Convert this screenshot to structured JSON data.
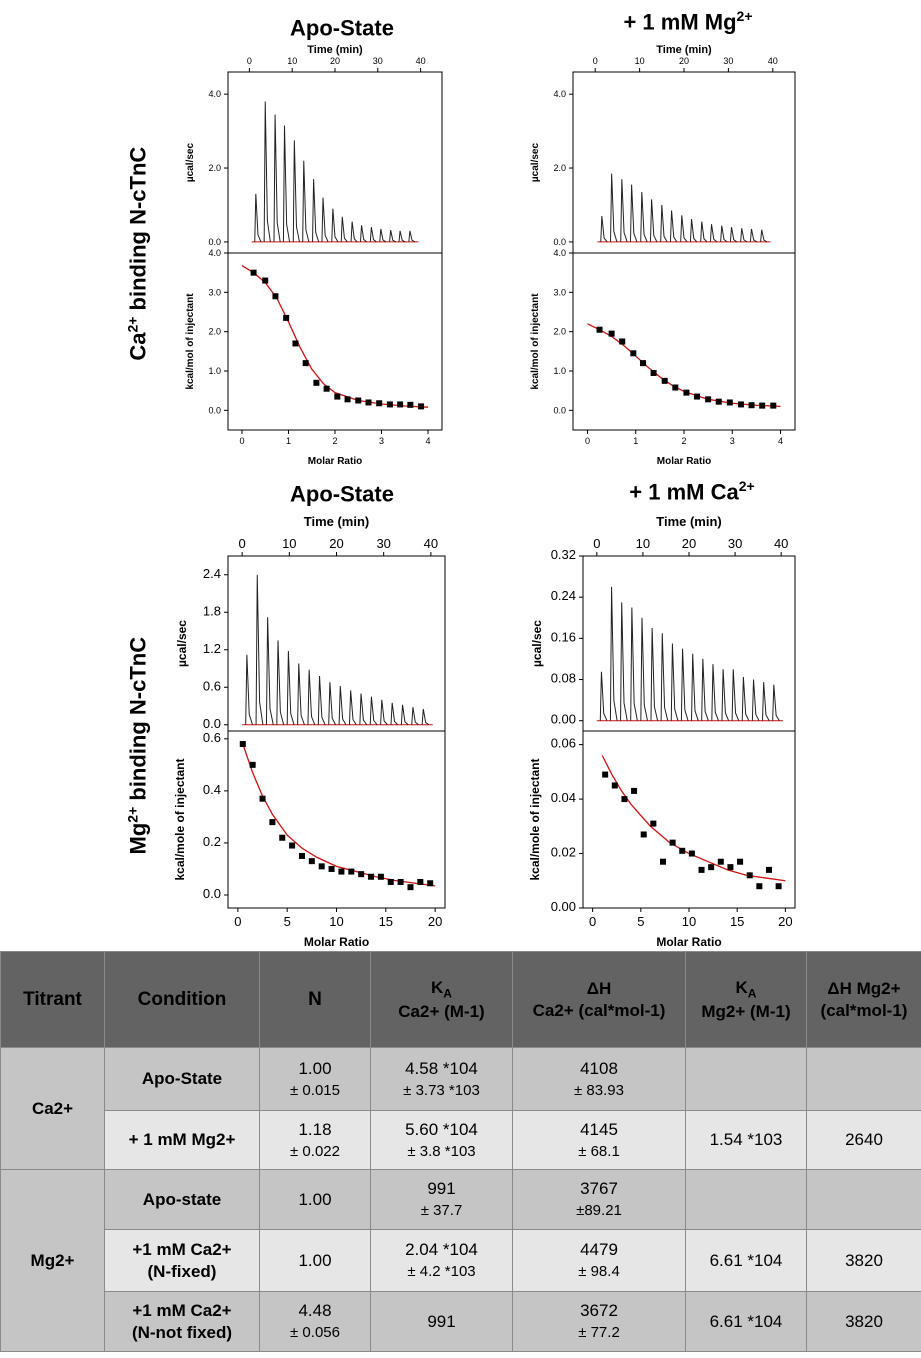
{
  "row_labels": {
    "top_main": "Ca",
    "top_sup": "2+",
    "top_rest": " binding N-cTnC",
    "bottom_main": "Mg",
    "bottom_sup": "2+",
    "bottom_rest": " binding N-cTnC"
  },
  "panel_titles": {
    "p1": {
      "main": "Apo-State",
      "sup": ""
    },
    "p2": {
      "main": "+ 1 mM Mg",
      "sup": "2+"
    },
    "p3": {
      "main": "Apo-State",
      "sup": ""
    },
    "p4": {
      "main": "+ 1 mM Ca",
      "sup": "2+"
    }
  },
  "chart_data": [
    {
      "type": "line",
      "id": "p1",
      "title": "Apo-State",
      "raw": {
        "xlabel": "Time (min)",
        "ylabel": "µcal/sec",
        "xlim": [
          -5,
          45
        ],
        "ylim": [
          -0.3,
          4.6
        ],
        "xticks": [
          0,
          10,
          20,
          30,
          40
        ],
        "yticks": [
          0.0,
          2.0,
          4.0
        ],
        "ytick_labels": [
          "0.0",
          "2.0",
          "4.0"
        ],
        "injection_times": [
          1.5,
          3.7,
          6,
          8.2,
          10.5,
          12.7,
          15,
          17.2,
          19.5,
          21.7,
          24,
          26.2,
          28.5,
          30.7,
          33,
          35.2,
          37.5
        ],
        "peak_heights": [
          1.3,
          3.8,
          3.45,
          3.15,
          2.75,
          2.2,
          1.7,
          1.2,
          0.9,
          0.68,
          0.55,
          0.45,
          0.4,
          0.35,
          0.32,
          0.3,
          0.3
        ],
        "baseline": 0.0
      },
      "fit": {
        "xlabel": "Molar Ratio",
        "ylabel": "kcal/mol of injectant",
        "xlim": [
          -0.3,
          4.3
        ],
        "ylim": [
          -0.5,
          4.0
        ],
        "xticks": [
          0,
          1,
          2,
          3,
          4
        ],
        "yticks": [
          0.0,
          1.0,
          2.0,
          3.0,
          4.0
        ],
        "ytick_labels": [
          "0.0",
          "1.0",
          "2.0",
          "3.0",
          "4.0"
        ],
        "points_x": [
          0.25,
          0.5,
          0.72,
          0.95,
          1.15,
          1.37,
          1.6,
          1.82,
          2.05,
          2.27,
          2.5,
          2.72,
          2.95,
          3.18,
          3.4,
          3.62,
          3.85
        ],
        "points_y": [
          3.5,
          3.3,
          2.9,
          2.35,
          1.7,
          1.2,
          0.7,
          0.55,
          0.35,
          0.28,
          0.25,
          0.2,
          0.18,
          0.15,
          0.15,
          0.14,
          0.1
        ],
        "fit_x": [
          0,
          0.25,
          0.5,
          0.75,
          1.0,
          1.25,
          1.5,
          1.75,
          2.0,
          2.5,
          3.0,
          3.5,
          4.0
        ],
        "fit_y": [
          3.68,
          3.5,
          3.25,
          2.85,
          2.25,
          1.6,
          1.05,
          0.68,
          0.45,
          0.25,
          0.16,
          0.11,
          0.08
        ]
      }
    },
    {
      "type": "line",
      "id": "p2",
      "title": "+ 1 mM Mg2+",
      "raw": {
        "xlabel": "Time (min)",
        "ylabel": "µcal/sec",
        "xlim": [
          -5,
          45
        ],
        "ylim": [
          -0.3,
          4.6
        ],
        "xticks": [
          0,
          10,
          20,
          30,
          40
        ],
        "yticks": [
          0.0,
          2.0,
          4.0
        ],
        "ytick_labels": [
          "0.0",
          "2.0",
          "4.0"
        ],
        "injection_times": [
          1.5,
          3.7,
          6,
          8.2,
          10.5,
          12.7,
          15,
          17.2,
          19.5,
          21.7,
          24,
          26.2,
          28.5,
          30.7,
          33,
          35.2,
          37.5
        ],
        "peak_heights": [
          0.7,
          1.85,
          1.7,
          1.55,
          1.35,
          1.15,
          1.0,
          0.85,
          0.72,
          0.62,
          0.55,
          0.48,
          0.44,
          0.4,
          0.37,
          0.35,
          0.33
        ],
        "baseline": 0.0
      },
      "fit": {
        "xlabel": "Molar Ratio",
        "ylabel": "kcal/mol of injectant",
        "xlim": [
          -0.3,
          4.3
        ],
        "ylim": [
          -0.5,
          4.0
        ],
        "xticks": [
          0,
          1,
          2,
          3,
          4
        ],
        "yticks": [
          0.0,
          1.0,
          2.0,
          3.0,
          4.0
        ],
        "ytick_labels": [
          "0.0",
          "1.0",
          "2.0",
          "3.0",
          "4.0"
        ],
        "points_x": [
          0.25,
          0.5,
          0.72,
          0.95,
          1.15,
          1.37,
          1.6,
          1.82,
          2.05,
          2.27,
          2.5,
          2.72,
          2.95,
          3.18,
          3.4,
          3.62,
          3.85
        ],
        "points_y": [
          2.05,
          1.95,
          1.75,
          1.45,
          1.2,
          0.95,
          0.75,
          0.58,
          0.45,
          0.35,
          0.28,
          0.22,
          0.2,
          0.15,
          0.13,
          0.12,
          0.12
        ],
        "fit_x": [
          0,
          0.25,
          0.5,
          0.75,
          1.0,
          1.25,
          1.5,
          1.75,
          2.0,
          2.5,
          3.0,
          3.5,
          4.0
        ],
        "fit_y": [
          2.2,
          2.05,
          1.88,
          1.65,
          1.38,
          1.1,
          0.85,
          0.64,
          0.48,
          0.28,
          0.18,
          0.13,
          0.1
        ]
      }
    },
    {
      "type": "line",
      "id": "p3",
      "title": "Apo-State",
      "raw": {
        "xlabel": "Time (min)",
        "ylabel": "µcal/sec",
        "xlim": [
          -3,
          43
        ],
        "ylim": [
          -0.1,
          2.7
        ],
        "xticks": [
          0,
          10,
          20,
          30,
          40
        ],
        "yticks": [
          0.0,
          0.6,
          1.2,
          1.8,
          2.4
        ],
        "ytick_labels": [
          "0.0",
          "0.6",
          "1.2",
          "1.8",
          "2.4"
        ],
        "injection_times": [
          1,
          3.2,
          5.4,
          7.6,
          9.8,
          12,
          14.2,
          16.4,
          18.6,
          20.8,
          23,
          25.2,
          27.4,
          29.6,
          31.8,
          34,
          36.2,
          38.4
        ],
        "peak_heights": [
          1.12,
          2.4,
          1.72,
          1.35,
          1.18,
          0.98,
          0.88,
          0.78,
          0.68,
          0.62,
          0.55,
          0.5,
          0.45,
          0.4,
          0.35,
          0.32,
          0.28,
          0.25
        ],
        "baseline": 0.0
      },
      "fit": {
        "xlabel": "Molar Ratio",
        "ylabel": "kcal/mole of injectant",
        "xlim": [
          -1,
          21
        ],
        "ylim": [
          -0.05,
          0.63
        ],
        "xticks": [
          0,
          5,
          10,
          15,
          20
        ],
        "yticks": [
          0.0,
          0.2,
          0.4,
          0.6
        ],
        "ytick_labels": [
          "0.0",
          "0.2",
          "0.4",
          "0.6"
        ],
        "points_x": [
          0.5,
          1.5,
          2.5,
          3.5,
          4.5,
          5.5,
          6.5,
          7.5,
          8.5,
          9.5,
          10.5,
          11.5,
          12.5,
          13.5,
          14.5,
          15.5,
          16.5,
          17.5,
          18.5,
          19.5
        ],
        "points_y": [
          0.58,
          0.5,
          0.37,
          0.28,
          0.22,
          0.19,
          0.15,
          0.13,
          0.11,
          0.1,
          0.09,
          0.09,
          0.08,
          0.07,
          0.07,
          0.05,
          0.05,
          0.03,
          0.05,
          0.045
        ],
        "fit_x": [
          0.5,
          1.5,
          2.5,
          3.5,
          5,
          6.5,
          8,
          10,
          12,
          14,
          16,
          18,
          20
        ],
        "fit_y": [
          0.58,
          0.47,
          0.38,
          0.31,
          0.23,
          0.18,
          0.145,
          0.11,
          0.09,
          0.07,
          0.055,
          0.045,
          0.035
        ]
      }
    },
    {
      "type": "line",
      "id": "p4",
      "title": "+ 1 mM Ca2+",
      "raw": {
        "xlabel": "Time (min)",
        "ylabel": "µcal/sec",
        "xlim": [
          -3,
          43
        ],
        "ylim": [
          -0.02,
          0.32
        ],
        "xticks": [
          0,
          10,
          20,
          30,
          40
        ],
        "yticks": [
          0.0,
          0.08,
          0.16,
          0.24,
          0.32
        ],
        "ytick_labels": [
          "0.00",
          "0.08",
          "0.16",
          "0.24",
          "0.32"
        ],
        "injection_times": [
          1,
          3.2,
          5.4,
          7.6,
          9.8,
          12,
          14.2,
          16.4,
          18.6,
          20.8,
          23,
          25.2,
          27.4,
          29.6,
          31.8,
          34,
          36.2,
          38.4
        ],
        "peak_heights": [
          0.095,
          0.26,
          0.23,
          0.22,
          0.2,
          0.18,
          0.17,
          0.15,
          0.14,
          0.13,
          0.12,
          0.11,
          0.1,
          0.1,
          0.085,
          0.08,
          0.075,
          0.07
        ],
        "baseline": 0.0
      },
      "fit": {
        "xlabel": "Molar Ratio",
        "ylabel": "kcal/mole of injectant",
        "xlim": [
          -1,
          21
        ],
        "ylim": [
          0.0,
          0.065
        ],
        "xticks": [
          0,
          5,
          10,
          15,
          20
        ],
        "yticks": [
          0.0,
          0.02,
          0.04,
          0.06
        ],
        "ytick_labels": [
          "0.00",
          "0.02",
          "0.04",
          "0.06"
        ],
        "points_x": [
          1.3,
          2.3,
          3.3,
          4.3,
          5.3,
          6.3,
          7.3,
          8.3,
          9.3,
          10.3,
          11.3,
          12.3,
          13.3,
          14.3,
          15.3,
          16.3,
          17.3,
          18.3,
          19.3
        ],
        "points_y": [
          0.049,
          0.045,
          0.04,
          0.043,
          0.027,
          0.031,
          0.017,
          0.024,
          0.021,
          0.02,
          0.014,
          0.015,
          0.017,
          0.015,
          0.017,
          0.012,
          0.008,
          0.014,
          0.008
        ],
        "fit_x": [
          1,
          2,
          3,
          4,
          5,
          6,
          8,
          10,
          12,
          14,
          16,
          18,
          20
        ],
        "fit_y": [
          0.056,
          0.049,
          0.043,
          0.038,
          0.034,
          0.03,
          0.024,
          0.02,
          0.017,
          0.014,
          0.012,
          0.011,
          0.01
        ]
      }
    }
  ],
  "table": {
    "headers": {
      "titrant": "Titrant",
      "condition": "Condition",
      "n": "N",
      "ka_ca_main": "K",
      "ka_ca_sub": "A",
      "ka_ca_line2": "Ca2+ (M-1)",
      "dh_ca_main": "ΔH",
      "dh_ca_line2": "Ca2+ (cal*mol-1)",
      "ka_mg_main": "K",
      "ka_mg_sub": "A",
      "ka_mg_line2": "Mg2+ (M-1)",
      "dh_mg_main": "ΔH Mg2+",
      "dh_mg_line2": "(cal*mol-1)"
    },
    "groups": [
      {
        "titrant": "Ca2+"
      },
      {
        "titrant": "Mg2+"
      }
    ],
    "rows": [
      {
        "condition": "Apo-State",
        "condition2": "",
        "n": "1.00",
        "n_err": "± 0.015",
        "ka_ca": "4.58 *104",
        "ka_ca_err": "± 3.73 *103",
        "dh_ca": "4108",
        "dh_ca_err": "± 83.93",
        "ka_mg": "",
        "dh_mg": ""
      },
      {
        "condition": "+ 1 mM Mg2+",
        "condition2": "",
        "n": "1.18",
        "n_err": "± 0.022",
        "ka_ca": "5.60 *104",
        "ka_ca_err": "± 3.8 *103",
        "dh_ca": "4145",
        "dh_ca_err": "± 68.1",
        "ka_mg": "1.54 *103",
        "dh_mg": "2640"
      },
      {
        "condition": "Apo-state",
        "condition2": "",
        "n": "1.00",
        "n_err": "",
        "ka_ca": "991",
        "ka_ca_err": "± 37.7",
        "dh_ca": "3767",
        "dh_ca_err": "±89.21",
        "ka_mg": "",
        "dh_mg": ""
      },
      {
        "condition": "+1 mM Ca2+",
        "condition2": "(N-fixed)",
        "n": "1.00",
        "n_err": "",
        "ka_ca": "2.04 *104",
        "ka_ca_err": "± 4.2 *103",
        "dh_ca": "4479",
        "dh_ca_err": "± 98.4",
        "ka_mg": "6.61 *104",
        "dh_mg": "3820"
      },
      {
        "condition": "+1 mM Ca2+",
        "condition2": "(N-not fixed)",
        "n": "4.48",
        "n_err": "± 0.056",
        "ka_ca": "991",
        "ka_ca_err": "",
        "dh_ca": "3672",
        "dh_ca_err": "± 77.2",
        "ka_mg": "6.61 *104",
        "dh_mg": "3820"
      }
    ]
  },
  "colors": {
    "fit_line": "#cc1111",
    "trace": "#000000",
    "header_bg": "#636363",
    "cell_dark": "#c5c5c5",
    "cell_light": "#e6e6e6"
  }
}
